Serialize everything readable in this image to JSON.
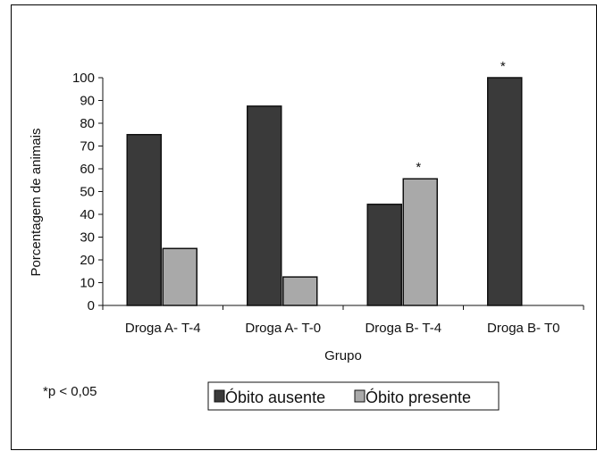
{
  "chart_data": {
    "type": "bar",
    "categories": [
      "Droga A- T-4",
      "Droga A- T-0",
      "Droga B- T-4",
      "Droga B- T0"
    ],
    "series": [
      {
        "name": "Óbito ausente",
        "values": [
          75,
          87.5,
          44.4,
          100
        ],
        "color": "#3a3a3a"
      },
      {
        "name": "Óbito presente",
        "values": [
          25,
          12.5,
          55.6,
          0
        ],
        "color": "#a9a9a9"
      }
    ],
    "xlabel": "Grupo",
    "ylabel": "Porcentagem de animais",
    "ylim": [
      0,
      100
    ],
    "yticks": [
      0,
      10,
      20,
      30,
      40,
      50,
      60,
      70,
      80,
      90,
      100
    ],
    "grid": false,
    "legend_position": "bottom",
    "annotations": [
      {
        "text": "*",
        "category": "Droga B- T-4",
        "series": "Óbito presente"
      },
      {
        "text": "*",
        "category": "Droga B- T0",
        "series": "Óbito ausente"
      }
    ],
    "footnote": "*p < 0,05"
  }
}
